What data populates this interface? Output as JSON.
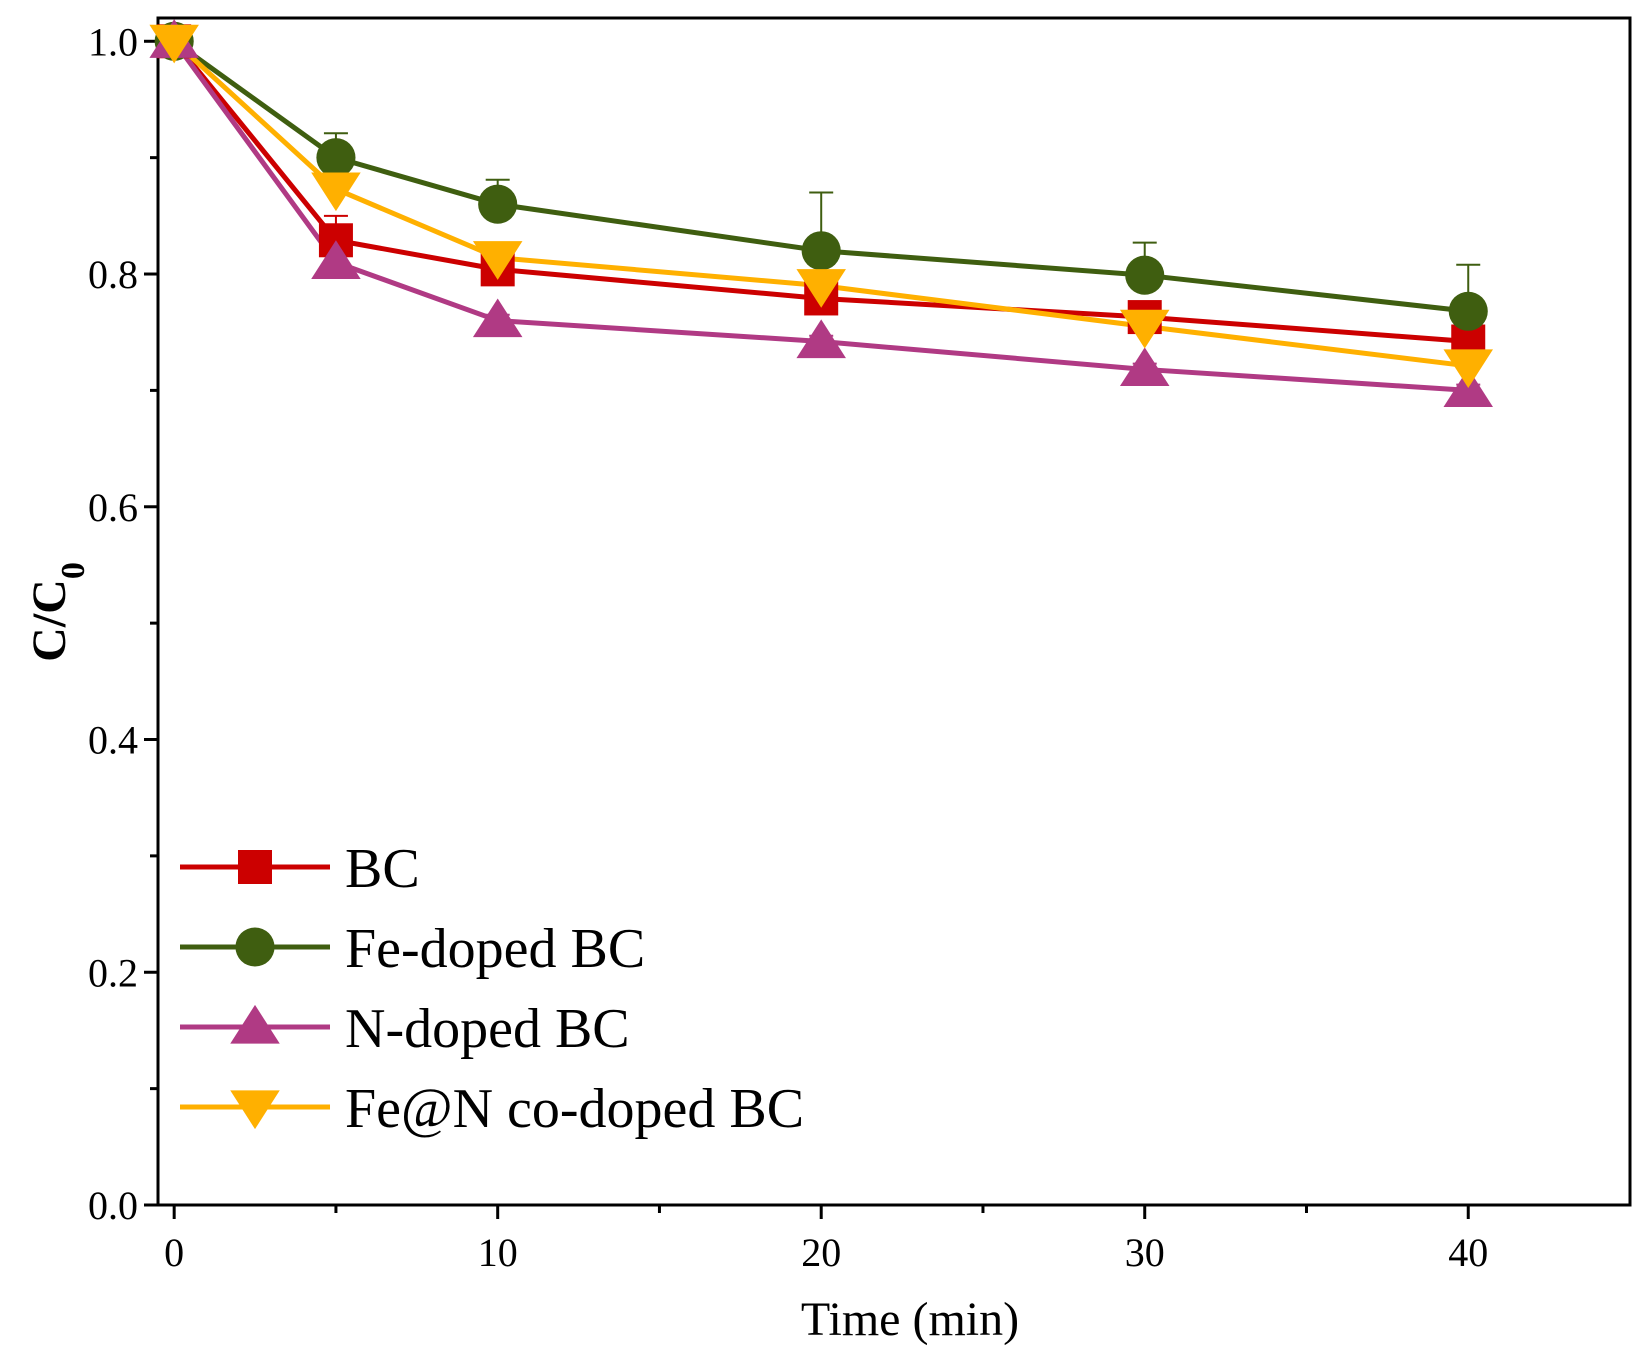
{
  "chart_data": {
    "type": "line",
    "xlabel": "Time (min)",
    "ylabel": {
      "main": "C/C",
      "sub": "0"
    },
    "xlim": [
      -0.5,
      45
    ],
    "ylim": [
      0,
      1.02
    ],
    "x_ticks": [
      0,
      10,
      20,
      30,
      40
    ],
    "x_minor_ticks": [
      5,
      15,
      25,
      35
    ],
    "y_ticks": [
      0.0,
      0.2,
      0.4,
      0.6,
      0.8,
      1.0
    ],
    "y_tick_labels": [
      "0.0",
      "0.2",
      "0.4",
      "0.6",
      "0.8",
      "1.0"
    ],
    "y_minor_ticks": [
      0.1,
      0.3,
      0.5,
      0.7,
      0.9
    ],
    "x_tick_labels": [
      "0",
      "10",
      "20",
      "30",
      "40"
    ],
    "grid": false,
    "legend_position": "bottom-left",
    "x": [
      0,
      5,
      10,
      20,
      30,
      40
    ],
    "series": [
      {
        "name": "BC",
        "color": "#cc0000",
        "marker": "square",
        "values": [
          1.0,
          0.829,
          0.804,
          0.779,
          0.763,
          0.742
        ],
        "error": [
          0,
          0.021,
          0.01,
          0.01,
          0.01,
          0.028
        ]
      },
      {
        "name": "Fe-doped BC",
        "color": "#3f5e10",
        "marker": "circle",
        "values": [
          1.0,
          0.9,
          0.86,
          0.82,
          0.799,
          0.768
        ],
        "error": [
          0,
          0.021,
          0.021,
          0.05,
          0.028,
          0.04
        ]
      },
      {
        "name": "N-doped BC",
        "color": "#b03a84",
        "marker": "triangle-up",
        "values": [
          1.0,
          0.81,
          0.76,
          0.742,
          0.718,
          0.7
        ],
        "error": [
          0,
          0.01,
          0.005,
          0.005,
          0.005,
          0.005
        ]
      },
      {
        "name": "Fe@N co-doped BC",
        "color": "#ffb000",
        "marker": "triangle-down",
        "values": [
          1.0,
          0.873,
          0.814,
          0.79,
          0.755,
          0.721
        ],
        "error": [
          0,
          0.01,
          0.005,
          0.012,
          0.012,
          0.015
        ]
      }
    ]
  }
}
